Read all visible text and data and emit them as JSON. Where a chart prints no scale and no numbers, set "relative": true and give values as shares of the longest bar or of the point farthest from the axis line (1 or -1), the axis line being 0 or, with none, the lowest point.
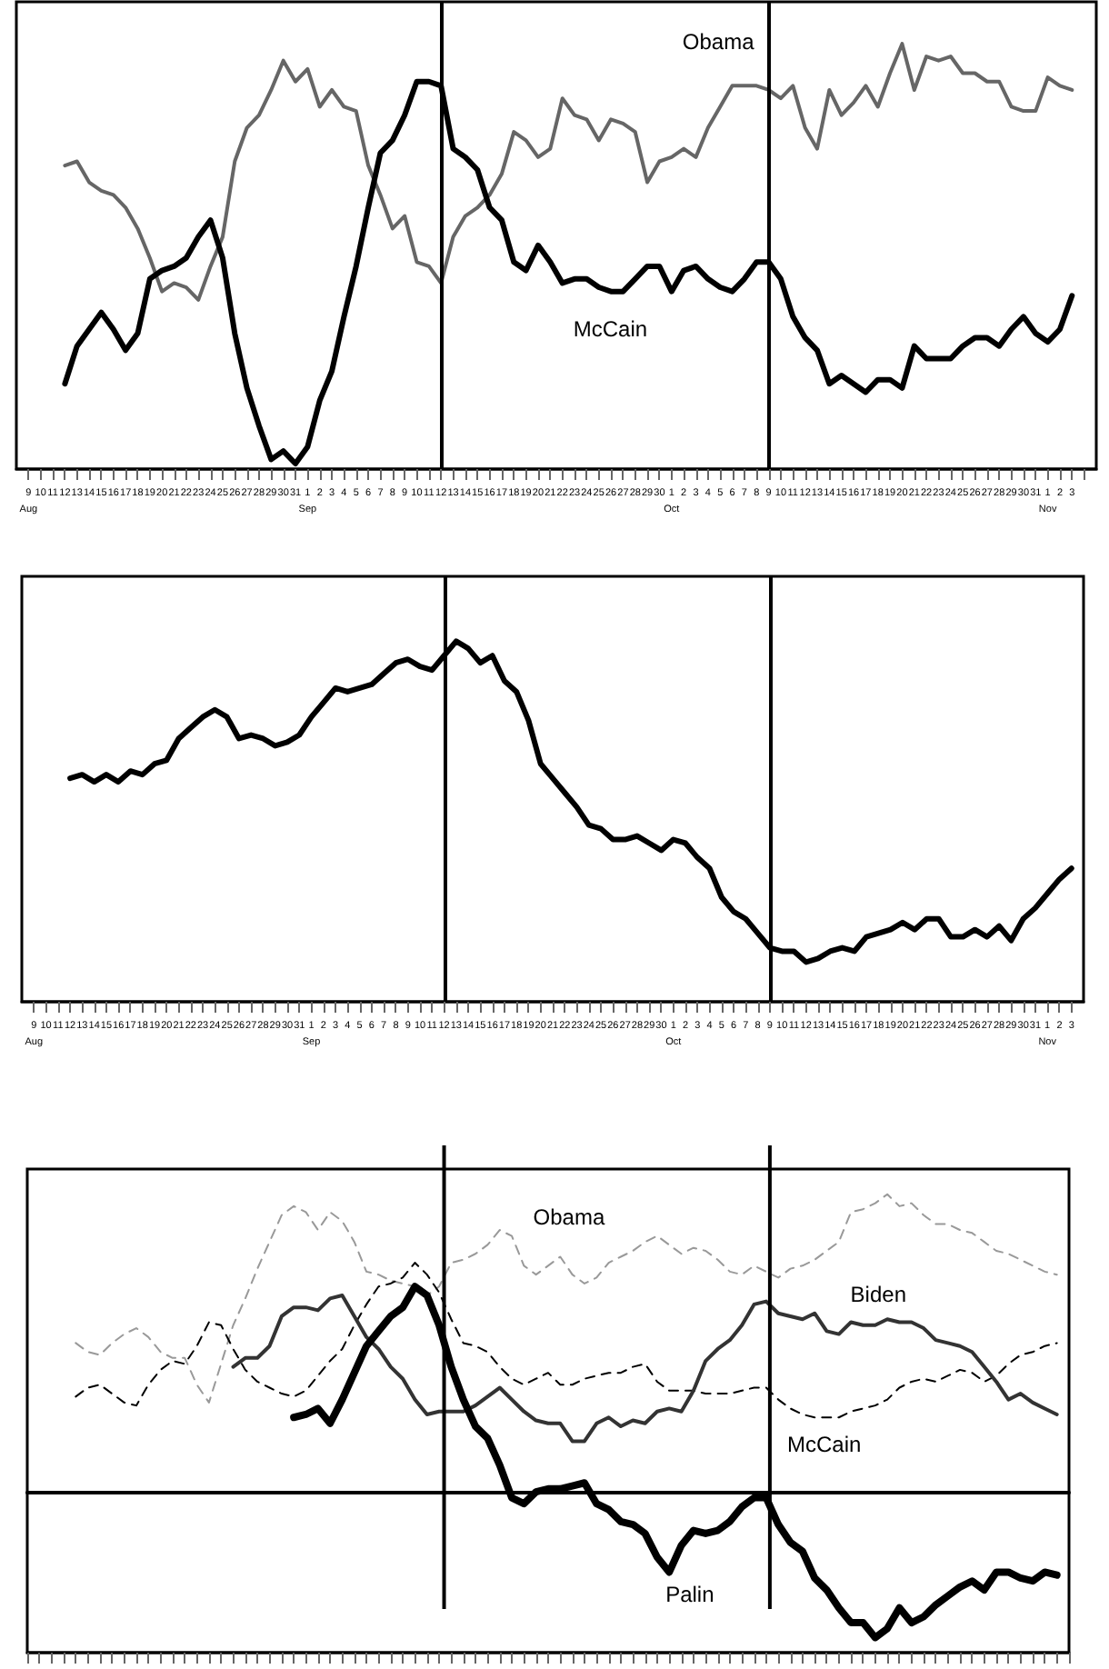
{
  "chart_data": [
    {
      "type": "line",
      "relative": true,
      "marker": "none",
      "tick_labels": "x",
      "x": [
        "--08-12",
        "--08-13",
        "--08-14",
        "--08-15",
        "--08-16",
        "--08-17",
        "--08-18",
        "--08-19",
        "--08-20",
        "--08-21",
        "--08-22",
        "--08-23",
        "--08-24",
        "--08-25",
        "--08-26",
        "--08-27",
        "--08-28",
        "--08-29",
        "--08-30",
        "--08-31",
        "--09-01",
        "--09-02",
        "--09-03",
        "--09-04",
        "--09-05",
        "--09-06",
        "--09-07",
        "--09-08",
        "--09-09",
        "--09-10",
        "--09-11",
        "--09-12",
        "--09-13",
        "--09-14",
        "--09-15",
        "--09-16",
        "--09-17",
        "--09-18",
        "--09-19",
        "--09-20",
        "--09-21",
        "--09-22",
        "--09-23",
        "--09-24",
        "--09-25",
        "--09-26",
        "--09-27",
        "--09-28",
        "--09-29",
        "--09-30",
        "--10-01",
        "--10-02",
        "--10-03",
        "--10-04",
        "--10-05",
        "--10-06",
        "--10-07",
        "--10-08",
        "--10-09",
        "--10-10",
        "--10-11",
        "--10-12",
        "--10-13",
        "--10-14",
        "--10-15",
        "--10-16",
        "--10-17",
        "--10-18",
        "--10-19",
        "--10-20",
        "--10-21",
        "--10-22",
        "--10-23",
        "--10-24",
        "--10-25",
        "--10-26",
        "--10-27",
        "--10-28",
        "--10-29",
        "--10-30",
        "--10-31",
        "--11-01",
        "--11-02",
        "--11-03"
      ],
      "xlim": [
        "--08-08",
        "--11-05"
      ],
      "xticks": [
        {
          "value": "--08-09",
          "label": "9\nAug"
        },
        {
          "value": "--08-10",
          "label": "10"
        },
        {
          "value": "--08-11",
          "label": "11"
        },
        {
          "value": "--08-12",
          "label": "12"
        },
        {
          "value": "--08-13",
          "label": "13"
        },
        {
          "value": "--08-14",
          "label": "14"
        },
        {
          "value": "--08-15",
          "label": "15"
        },
        {
          "value": "--08-16",
          "label": "16"
        },
        {
          "value": "--08-17",
          "label": "17"
        },
        {
          "value": "--08-18",
          "label": "18"
        },
        {
          "value": "--08-19",
          "label": "19"
        },
        {
          "value": "--08-20",
          "label": "20"
        },
        {
          "value": "--08-21",
          "label": "21"
        },
        {
          "value": "--08-22",
          "label": "22"
        },
        {
          "value": "--08-23",
          "label": "23"
        },
        {
          "value": "--08-24",
          "label": "24"
        },
        {
          "value": "--08-25",
          "label": "25"
        },
        {
          "value": "--08-26",
          "label": "26"
        },
        {
          "value": "--08-27",
          "label": "27"
        },
        {
          "value": "--08-28",
          "label": "28"
        },
        {
          "value": "--08-29",
          "label": "29"
        },
        {
          "value": "--08-30",
          "label": "30"
        },
        {
          "value": "--08-31",
          "label": "31"
        },
        {
          "value": "--09-01",
          "label": "1\nSep"
        },
        {
          "value": "--09-02",
          "label": "2"
        },
        {
          "value": "--09-03",
          "label": "3"
        },
        {
          "value": "--09-04",
          "label": "4"
        },
        {
          "value": "--09-05",
          "label": "5"
        },
        {
          "value": "--09-06",
          "label": "6"
        },
        {
          "value": "--09-07",
          "label": "7"
        },
        {
          "value": "--09-08",
          "label": "8"
        },
        {
          "value": "--09-09",
          "label": "9"
        },
        {
          "value": "--09-10",
          "label": "10"
        },
        {
          "value": "--09-11",
          "label": "11"
        },
        {
          "value": "--09-12",
          "label": "12"
        },
        {
          "value": "--09-13",
          "label": "13"
        },
        {
          "value": "--09-14",
          "label": "14"
        },
        {
          "value": "--09-15",
          "label": "15"
        },
        {
          "value": "--09-16",
          "label": "16"
        },
        {
          "value": "--09-17",
          "label": "17"
        },
        {
          "value": "--09-18",
          "label": "18"
        },
        {
          "value": "--09-19",
          "label": "19"
        },
        {
          "value": "--09-20",
          "label": "20"
        },
        {
          "value": "--09-21",
          "label": "21"
        },
        {
          "value": "--09-22",
          "label": "22"
        },
        {
          "value": "--09-23",
          "label": "23"
        },
        {
          "value": "--09-24",
          "label": "24"
        },
        {
          "value": "--09-25",
          "label": "25"
        },
        {
          "value": "--09-26",
          "label": "26"
        },
        {
          "value": "--09-27",
          "label": "27"
        },
        {
          "value": "--09-28",
          "label": "28"
        },
        {
          "value": "--09-29",
          "label": "29"
        },
        {
          "value": "--09-30",
          "label": "30"
        },
        {
          "value": "--10-01",
          "label": "1\nOct"
        },
        {
          "value": "--10-02",
          "label": "2"
        },
        {
          "value": "--10-03",
          "label": "3"
        },
        {
          "value": "--10-04",
          "label": "4"
        },
        {
          "value": "--10-05",
          "label": "5"
        },
        {
          "value": "--10-06",
          "label": "6"
        },
        {
          "value": "--10-07",
          "label": "7"
        },
        {
          "value": "--10-08",
          "label": "8"
        },
        {
          "value": "--10-09",
          "label": "9"
        },
        {
          "value": "--10-10",
          "label": "10"
        },
        {
          "value": "--10-11",
          "label": "11"
        },
        {
          "value": "--10-12",
          "label": "12"
        },
        {
          "value": "--10-13",
          "label": "13"
        },
        {
          "value": "--10-14",
          "label": "14"
        },
        {
          "value": "--10-15",
          "label": "15"
        },
        {
          "value": "--10-16",
          "label": "16"
        },
        {
          "value": "--10-17",
          "label": "17"
        },
        {
          "value": "--10-18",
          "label": "18"
        },
        {
          "value": "--10-19",
          "label": "19"
        },
        {
          "value": "--10-20",
          "label": "20"
        },
        {
          "value": "--10-21",
          "label": "21"
        },
        {
          "value": "--10-22",
          "label": "22"
        },
        {
          "value": "--10-23",
          "label": "23"
        },
        {
          "value": "--10-24",
          "label": "24"
        },
        {
          "value": "--10-25",
          "label": "25"
        },
        {
          "value": "--10-26",
          "label": "26"
        },
        {
          "value": "--10-27",
          "label": "27"
        },
        {
          "value": "--10-28",
          "label": "28"
        },
        {
          "value": "--10-29",
          "label": "29"
        },
        {
          "value": "--10-30",
          "label": "30"
        },
        {
          "value": "--10-31",
          "label": "31"
        },
        {
          "value": "--11-01",
          "label": "1\nNov"
        },
        {
          "value": "--11-02",
          "label": "2"
        },
        {
          "value": "--11-03",
          "label": "3"
        },
        {
          "value": "--11-04",
          "label": null
        }
      ],
      "ref_lines": [
        {
          "axis": "x",
          "value": "--09-12",
          "color": "#000000"
        },
        {
          "axis": "x",
          "value": "--10-09",
          "color": "#000000"
        }
      ],
      "series": [
        {
          "name": "Obama",
          "color": "#666666",
          "values": [
            0.71,
            0.72,
            0.67,
            0.65,
            0.64,
            0.61,
            0.56,
            0.49,
            0.41,
            0.43,
            0.42,
            0.39,
            0.47,
            0.54,
            0.72,
            0.8,
            0.83,
            0.89,
            0.96,
            0.91,
            0.94,
            0.85,
            0.89,
            0.85,
            0.84,
            0.71,
            0.64,
            0.56,
            0.59,
            0.48,
            0.47,
            0.43,
            0.54,
            0.59,
            0.61,
            0.64,
            0.69,
            0.79,
            0.77,
            0.73,
            0.75,
            0.87,
            0.83,
            0.82,
            0.77,
            0.82,
            0.81,
            0.79,
            0.67,
            0.72,
            0.73,
            0.75,
            0.73,
            0.8,
            0.85,
            0.9,
            0.9,
            0.9,
            0.89,
            0.87,
            0.9,
            0.8,
            0.75,
            0.89,
            0.83,
            0.86,
            0.9,
            0.85,
            0.93,
            1,
            0.89,
            0.97,
            0.96,
            0.97,
            0.93,
            0.93,
            0.91,
            0.91,
            0.85,
            0.84,
            0.84,
            0.92,
            0.9,
            0.89
          ]
        },
        {
          "name": "McCain",
          "color": "#000000",
          "values": [
            0.19,
            0.28,
            0.32,
            0.36,
            0.32,
            0.27,
            0.31,
            0.44,
            0.46,
            0.47,
            0.49,
            0.54,
            0.58,
            0.49,
            0.31,
            0.18,
            0.09,
            0.01,
            0.03,
            0,
            0.04,
            0.15,
            0.22,
            0.35,
            0.47,
            0.61,
            0.74,
            0.77,
            0.83,
            0.91,
            0.91,
            0.9,
            0.75,
            0.73,
            0.7,
            0.61,
            0.58,
            0.48,
            0.46,
            0.52,
            0.48,
            0.43,
            0.44,
            0.44,
            0.42,
            0.41,
            0.41,
            0.44,
            0.47,
            0.47,
            0.41,
            0.46,
            0.47,
            0.44,
            0.42,
            0.41,
            0.44,
            0.48,
            0.48,
            0.44,
            0.35,
            0.3,
            0.27,
            0.19,
            0.21,
            0.19,
            0.17,
            0.2,
            0.2,
            0.18,
            0.28,
            0.25,
            0.25,
            0.25,
            0.28,
            0.3,
            0.3,
            0.28,
            0.32,
            0.35,
            0.31,
            0.29,
            0.32,
            0.4
          ]
        }
      ]
    },
    {
      "type": "line",
      "relative": true,
      "marker": "none",
      "tick_labels": "x",
      "x": [
        "--08-12",
        "--08-13",
        "--08-14",
        "--08-15",
        "--08-16",
        "--08-17",
        "--08-18",
        "--08-19",
        "--08-20",
        "--08-21",
        "--08-22",
        "--08-23",
        "--08-24",
        "--08-25",
        "--08-26",
        "--08-27",
        "--08-28",
        "--08-29",
        "--08-30",
        "--08-31",
        "--09-01",
        "--09-02",
        "--09-03",
        "--09-04",
        "--09-05",
        "--09-06",
        "--09-07",
        "--09-08",
        "--09-09",
        "--09-10",
        "--09-11",
        "--09-12",
        "--09-13",
        "--09-14",
        "--09-15",
        "--09-16",
        "--09-17",
        "--09-18",
        "--09-19",
        "--09-20",
        "--09-21",
        "--09-22",
        "--09-23",
        "--09-24",
        "--09-25",
        "--09-26",
        "--09-27",
        "--09-28",
        "--09-29",
        "--09-30",
        "--10-01",
        "--10-02",
        "--10-03",
        "--10-04",
        "--10-05",
        "--10-06",
        "--10-07",
        "--10-08",
        "--10-09",
        "--10-10",
        "--10-11",
        "--10-12",
        "--10-13",
        "--10-14",
        "--10-15",
        "--10-16",
        "--10-17",
        "--10-18",
        "--10-19",
        "--10-20",
        "--10-21",
        "--10-22",
        "--10-23",
        "--10-24",
        "--10-25",
        "--10-26",
        "--10-27",
        "--10-28",
        "--10-29",
        "--10-30",
        "--10-31",
        "--11-01",
        "--11-02",
        "--11-03"
      ],
      "xlim": [
        "--08-08",
        "--11-04"
      ],
      "xticks": [
        {
          "value": "--08-09",
          "label": "9\nAug"
        },
        {
          "value": "--08-10",
          "label": "10"
        },
        {
          "value": "--08-11",
          "label": "11"
        },
        {
          "value": "--08-12",
          "label": "12"
        },
        {
          "value": "--08-13",
          "label": "13"
        },
        {
          "value": "--08-14",
          "label": "14"
        },
        {
          "value": "--08-15",
          "label": "15"
        },
        {
          "value": "--08-16",
          "label": "16"
        },
        {
          "value": "--08-17",
          "label": "17"
        },
        {
          "value": "--08-18",
          "label": "18"
        },
        {
          "value": "--08-19",
          "label": "19"
        },
        {
          "value": "--08-20",
          "label": "20"
        },
        {
          "value": "--08-21",
          "label": "21"
        },
        {
          "value": "--08-22",
          "label": "22"
        },
        {
          "value": "--08-23",
          "label": "23"
        },
        {
          "value": "--08-24",
          "label": "24"
        },
        {
          "value": "--08-25",
          "label": "25"
        },
        {
          "value": "--08-26",
          "label": "26"
        },
        {
          "value": "--08-27",
          "label": "27"
        },
        {
          "value": "--08-28",
          "label": "28"
        },
        {
          "value": "--08-29",
          "label": "29"
        },
        {
          "value": "--08-30",
          "label": "30"
        },
        {
          "value": "--08-31",
          "label": "31"
        },
        {
          "value": "--09-01",
          "label": "1\nSep"
        },
        {
          "value": "--09-02",
          "label": "2"
        },
        {
          "value": "--09-03",
          "label": "3"
        },
        {
          "value": "--09-04",
          "label": "4"
        },
        {
          "value": "--09-05",
          "label": "5"
        },
        {
          "value": "--09-06",
          "label": "6"
        },
        {
          "value": "--09-07",
          "label": "7"
        },
        {
          "value": "--09-08",
          "label": "8"
        },
        {
          "value": "--09-09",
          "label": "9"
        },
        {
          "value": "--09-10",
          "label": "10"
        },
        {
          "value": "--09-11",
          "label": "11"
        },
        {
          "value": "--09-12",
          "label": "12"
        },
        {
          "value": "--09-13",
          "label": "13"
        },
        {
          "value": "--09-14",
          "label": "14"
        },
        {
          "value": "--09-15",
          "label": "15"
        },
        {
          "value": "--09-16",
          "label": "16"
        },
        {
          "value": "--09-17",
          "label": "17"
        },
        {
          "value": "--09-18",
          "label": "18"
        },
        {
          "value": "--09-19",
          "label": "19"
        },
        {
          "value": "--09-20",
          "label": "20"
        },
        {
          "value": "--09-21",
          "label": "21"
        },
        {
          "value": "--09-22",
          "label": "22"
        },
        {
          "value": "--09-23",
          "label": "23"
        },
        {
          "value": "--09-24",
          "label": "24"
        },
        {
          "value": "--09-25",
          "label": "25"
        },
        {
          "value": "--09-26",
          "label": "26"
        },
        {
          "value": "--09-27",
          "label": "27"
        },
        {
          "value": "--09-28",
          "label": "28"
        },
        {
          "value": "--09-29",
          "label": "29"
        },
        {
          "value": "--09-30",
          "label": "30"
        },
        {
          "value": "--10-01",
          "label": "1\nOct"
        },
        {
          "value": "--10-02",
          "label": "2"
        },
        {
          "value": "--10-03",
          "label": "3"
        },
        {
          "value": "--10-04",
          "label": "4"
        },
        {
          "value": "--10-05",
          "label": "5"
        },
        {
          "value": "--10-06",
          "label": "6"
        },
        {
          "value": "--10-07",
          "label": "7"
        },
        {
          "value": "--10-08",
          "label": "8"
        },
        {
          "value": "--10-09",
          "label": "9"
        },
        {
          "value": "--10-10",
          "label": "10"
        },
        {
          "value": "--10-11",
          "label": "11"
        },
        {
          "value": "--10-12",
          "label": "12"
        },
        {
          "value": "--10-13",
          "label": "13"
        },
        {
          "value": "--10-14",
          "label": "14"
        },
        {
          "value": "--10-15",
          "label": "15"
        },
        {
          "value": "--10-16",
          "label": "16"
        },
        {
          "value": "--10-17",
          "label": "17"
        },
        {
          "value": "--10-18",
          "label": "18"
        },
        {
          "value": "--10-19",
          "label": "19"
        },
        {
          "value": "--10-20",
          "label": "20"
        },
        {
          "value": "--10-21",
          "label": "21"
        },
        {
          "value": "--10-22",
          "label": "22"
        },
        {
          "value": "--10-23",
          "label": "23"
        },
        {
          "value": "--10-24",
          "label": "24"
        },
        {
          "value": "--10-25",
          "label": "25"
        },
        {
          "value": "--10-26",
          "label": "26"
        },
        {
          "value": "--10-27",
          "label": "27"
        },
        {
          "value": "--10-28",
          "label": "28"
        },
        {
          "value": "--10-29",
          "label": "29"
        },
        {
          "value": "--10-30",
          "label": "30"
        },
        {
          "value": "--10-31",
          "label": "31"
        },
        {
          "value": "--11-01",
          "label": "1\nNov"
        },
        {
          "value": "--11-02",
          "label": "2"
        },
        {
          "value": "--11-03",
          "label": "3"
        }
      ],
      "ref_lines": [
        {
          "axis": "x",
          "value": "--09-12",
          "color": "#000000"
        },
        {
          "axis": "x",
          "value": "--10-09",
          "color": "#000000"
        }
      ],
      "series": [
        {
          "color": "#000000",
          "values": [
            0.62,
            0.63,
            0.61,
            0.63,
            0.61,
            0.64,
            0.63,
            0.66,
            0.67,
            0.73,
            0.76,
            0.79,
            0.81,
            0.79,
            0.73,
            0.74,
            0.73,
            0.71,
            0.72,
            0.74,
            0.79,
            0.83,
            0.87,
            0.86,
            0.87,
            0.88,
            0.91,
            0.94,
            0.95,
            0.93,
            0.92,
            0.96,
            1,
            0.98,
            0.94,
            0.96,
            0.89,
            0.86,
            0.78,
            0.66,
            0.62,
            0.58,
            0.54,
            0.49,
            0.48,
            0.45,
            0.45,
            0.46,
            0.44,
            0.42,
            0.45,
            0.44,
            0.4,
            0.37,
            0.29,
            0.25,
            0.23,
            0.19,
            0.15,
            0.14,
            0.14,
            0.11,
            0.12,
            0.14,
            0.15,
            0.14,
            0.18,
            0.19,
            0.2,
            0.22,
            0.2,
            0.23,
            0.23,
            0.18,
            0.18,
            0.2,
            0.18,
            0.21,
            0.17,
            0.23,
            0.26,
            0.3,
            0.34,
            0.37
          ]
        }
      ]
    },
    {
      "type": "line",
      "relative": true,
      "marker": "none",
      "categories": [
        null,
        null,
        null,
        null,
        null,
        null,
        null,
        null,
        null,
        null,
        null,
        null,
        null,
        null,
        null,
        null,
        null,
        null,
        null,
        null,
        null,
        null,
        null,
        null,
        null,
        null,
        null,
        null,
        null,
        null,
        null,
        null,
        null,
        null,
        null,
        null,
        null,
        null,
        null,
        null,
        null,
        null,
        null,
        null,
        null,
        null,
        null,
        null,
        null,
        null,
        null,
        null,
        null,
        null,
        null,
        null,
        null,
        null,
        null,
        null,
        null,
        null,
        null,
        null,
        null,
        null,
        null,
        null,
        null,
        null,
        null,
        null,
        null,
        null,
        null,
        null,
        null,
        null,
        null,
        null,
        null,
        null,
        null,
        null,
        null,
        null,
        null
      ],
      "series": [
        {
          "name": "Obama",
          "color": "#999999",
          "line_style": "dashed",
          "values": [
            null,
            null,
            null,
            null,
            0.5,
            0.47,
            0.46,
            0.5,
            0.53,
            0.55,
            0.52,
            0.47,
            0.45,
            0.45,
            0.36,
            0.3,
            0.43,
            0.56,
            0.65,
            0.75,
            0.84,
            0.93,
            0.96,
            0.94,
            0.88,
            0.94,
            0.91,
            0.84,
            0.74,
            0.73,
            0.71,
            0.7,
            0.69,
            0.66,
            0.69,
            0.77,
            0.78,
            0.8,
            0.83,
            0.88,
            0.86,
            0.76,
            0.73,
            0.76,
            0.79,
            0.73,
            0.7,
            0.72,
            0.77,
            0.79,
            0.81,
            0.84,
            0.86,
            0.83,
            0.8,
            0.82,
            0.81,
            0.78,
            0.74,
            0.73,
            0.76,
            0.74,
            0.72,
            0.75,
            0.76,
            0.78,
            0.81,
            0.84,
            0.94,
            0.95,
            0.97,
            1,
            0.96,
            0.97,
            0.93,
            0.9,
            0.9,
            0.88,
            0.87,
            0.84,
            0.81,
            0.8,
            0.78,
            0.76,
            0.74,
            0.73,
            null
          ]
        },
        {
          "name": "McCain",
          "color": "#000000",
          "line_style": "dashed",
          "values": [
            null,
            null,
            null,
            null,
            0.32,
            0.35,
            0.36,
            0.33,
            0.3,
            0.29,
            0.36,
            0.41,
            0.44,
            0.43,
            0.49,
            0.57,
            0.56,
            0.48,
            0.41,
            0.37,
            0.35,
            0.33,
            0.32,
            0.34,
            0.39,
            0.44,
            0.48,
            0.56,
            0.63,
            0.69,
            0.7,
            0.72,
            0.77,
            0.73,
            0.67,
            0.58,
            0.5,
            0.49,
            0.47,
            0.42,
            0.38,
            0.36,
            0.38,
            0.4,
            0.36,
            0.36,
            0.38,
            0.39,
            0.4,
            0.4,
            0.42,
            0.43,
            0.37,
            0.34,
            0.34,
            0.34,
            0.33,
            0.33,
            0.33,
            0.34,
            0.35,
            0.35,
            0.31,
            0.28,
            0.26,
            0.25,
            0.25,
            0.25,
            0.27,
            0.28,
            0.29,
            0.31,
            0.35,
            0.37,
            0.38,
            0.37,
            0.39,
            0.41,
            0.4,
            0.37,
            0.39,
            0.43,
            0.46,
            0.47,
            0.49,
            0.5,
            null
          ]
        },
        {
          "name": "Biden",
          "color": "#333333",
          "line_style": "solid",
          "values": [
            null,
            null,
            null,
            null,
            null,
            null,
            null,
            null,
            null,
            null,
            null,
            null,
            null,
            null,
            null,
            null,
            null,
            0.42,
            0.45,
            0.45,
            0.49,
            0.59,
            0.62,
            0.62,
            0.61,
            0.65,
            0.66,
            0.59,
            0.52,
            0.48,
            0.42,
            0.38,
            0.31,
            0.26,
            0.27,
            0.27,
            0.27,
            0.29,
            0.32,
            0.35,
            0.31,
            0.27,
            0.24,
            0.23,
            0.23,
            0.17,
            0.17,
            0.23,
            0.25,
            0.22,
            0.24,
            0.23,
            0.27,
            0.28,
            0.27,
            0.34,
            0.44,
            0.48,
            0.51,
            0.56,
            0.63,
            0.64,
            0.6,
            0.59,
            0.58,
            0.6,
            0.54,
            0.53,
            0.57,
            0.56,
            0.56,
            0.58,
            0.57,
            0.57,
            0.55,
            0.51,
            0.5,
            0.49,
            0.47,
            0.42,
            0.37,
            0.31,
            0.33,
            0.3,
            0.28,
            0.26,
            null
          ]
        },
        {
          "name": "Palin",
          "color": "#000000",
          "line_style": "solid",
          "values": [
            null,
            null,
            null,
            null,
            null,
            null,
            null,
            null,
            null,
            null,
            null,
            null,
            null,
            null,
            null,
            null,
            null,
            null,
            null,
            null,
            null,
            null,
            0.25,
            0.26,
            0.28,
            0.23,
            0.31,
            0.4,
            0.49,
            0.54,
            0.59,
            0.62,
            0.69,
            0.66,
            0.56,
            0.42,
            0.31,
            0.22,
            0.18,
            0.09,
            -0.02,
            -0.04,
            0,
            0.01,
            0.01,
            0.02,
            0.03,
            -0.04,
            -0.06,
            -0.1,
            -0.11,
            -0.14,
            -0.22,
            -0.27,
            -0.18,
            -0.13,
            -0.14,
            -0.13,
            -0.1,
            -0.05,
            -0.02,
            -0.02,
            -0.11,
            -0.17,
            -0.2,
            -0.29,
            -0.33,
            -0.39,
            -0.44,
            -0.44,
            -0.49,
            -0.46,
            -0.39,
            -0.44,
            -0.42,
            -0.38,
            -0.35,
            -0.32,
            -0.3,
            -0.33,
            -0.27,
            -0.27,
            -0.29,
            -0.3,
            -0.27,
            -0.28,
            null
          ]
        }
      ]
    }
  ]
}
